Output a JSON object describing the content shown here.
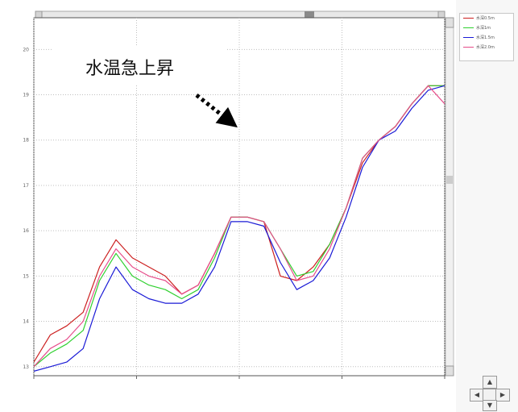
{
  "chart_data": {
    "type": "line",
    "title": "",
    "xlabel": "",
    "ylabel": "",
    "x": [
      0,
      4,
      8,
      12,
      16,
      20,
      24,
      28,
      32,
      36,
      40,
      44,
      48,
      52,
      56,
      60,
      64,
      68,
      72,
      76,
      80,
      84,
      88,
      92,
      96,
      100
    ],
    "xlim": [
      0,
      100
    ],
    "ylim": [
      12.8,
      20.7
    ],
    "yticks": [
      13,
      14,
      15,
      16,
      17,
      18,
      19,
      20
    ],
    "ytick_labels": [
      "13",
      "14",
      "15",
      "16",
      "17",
      "18",
      "19",
      "20"
    ],
    "xtick_labels": [
      "",
      "",
      "",
      "",
      ""
    ],
    "series": [
      {
        "color": "#cc1f1f",
        "values": [
          13.1,
          13.7,
          13.9,
          14.2,
          15.2,
          15.8,
          15.4,
          15.2,
          15.0,
          14.6,
          14.8,
          15.5,
          16.3,
          16.3,
          16.2,
          15.0,
          14.9,
          15.2,
          15.7,
          16.5,
          17.5,
          18.0,
          18.3,
          18.8,
          19.2,
          19.2
        ]
      },
      {
        "color": "#2fd02f",
        "values": [
          13.0,
          13.3,
          13.5,
          13.8,
          14.9,
          15.5,
          15.0,
          14.8,
          14.7,
          14.5,
          14.7,
          15.4,
          16.3,
          16.3,
          16.2,
          15.6,
          15.0,
          15.1,
          15.7,
          16.5,
          17.6,
          18.0,
          18.3,
          18.8,
          19.2,
          19.2
        ]
      },
      {
        "color": "#1a1ad6",
        "values": [
          12.9,
          13.0,
          13.1,
          13.4,
          14.5,
          15.2,
          14.7,
          14.5,
          14.4,
          14.4,
          14.6,
          15.2,
          16.2,
          16.2,
          16.1,
          15.3,
          14.7,
          14.9,
          15.4,
          16.3,
          17.4,
          18.0,
          18.2,
          18.7,
          19.1,
          19.2
        ]
      },
      {
        "color": "#e64d8a",
        "values": [
          13.0,
          13.4,
          13.6,
          14.0,
          15.0,
          15.6,
          15.2,
          15.0,
          14.9,
          14.6,
          14.8,
          15.5,
          16.3,
          16.3,
          16.2,
          15.6,
          14.9,
          15.0,
          15.6,
          16.5,
          17.6,
          18.0,
          18.3,
          18.8,
          19.2,
          18.8
        ]
      }
    ],
    "legend": {
      "position": "right"
    },
    "grid": true
  },
  "legend": {
    "items": [
      {
        "label": "水深0.5m",
        "color": "#cc1f1f"
      },
      {
        "label": "水深1m",
        "color": "#2fd02f"
      },
      {
        "label": "水深1.5m",
        "color": "#1a1ad6"
      },
      {
        "label": "水深2.0m",
        "color": "#e64d8a"
      }
    ]
  },
  "annotation": {
    "text": "水温急上昇"
  },
  "nav": {
    "up": "▲",
    "down": "▼",
    "left": "◀",
    "right": "▶"
  }
}
